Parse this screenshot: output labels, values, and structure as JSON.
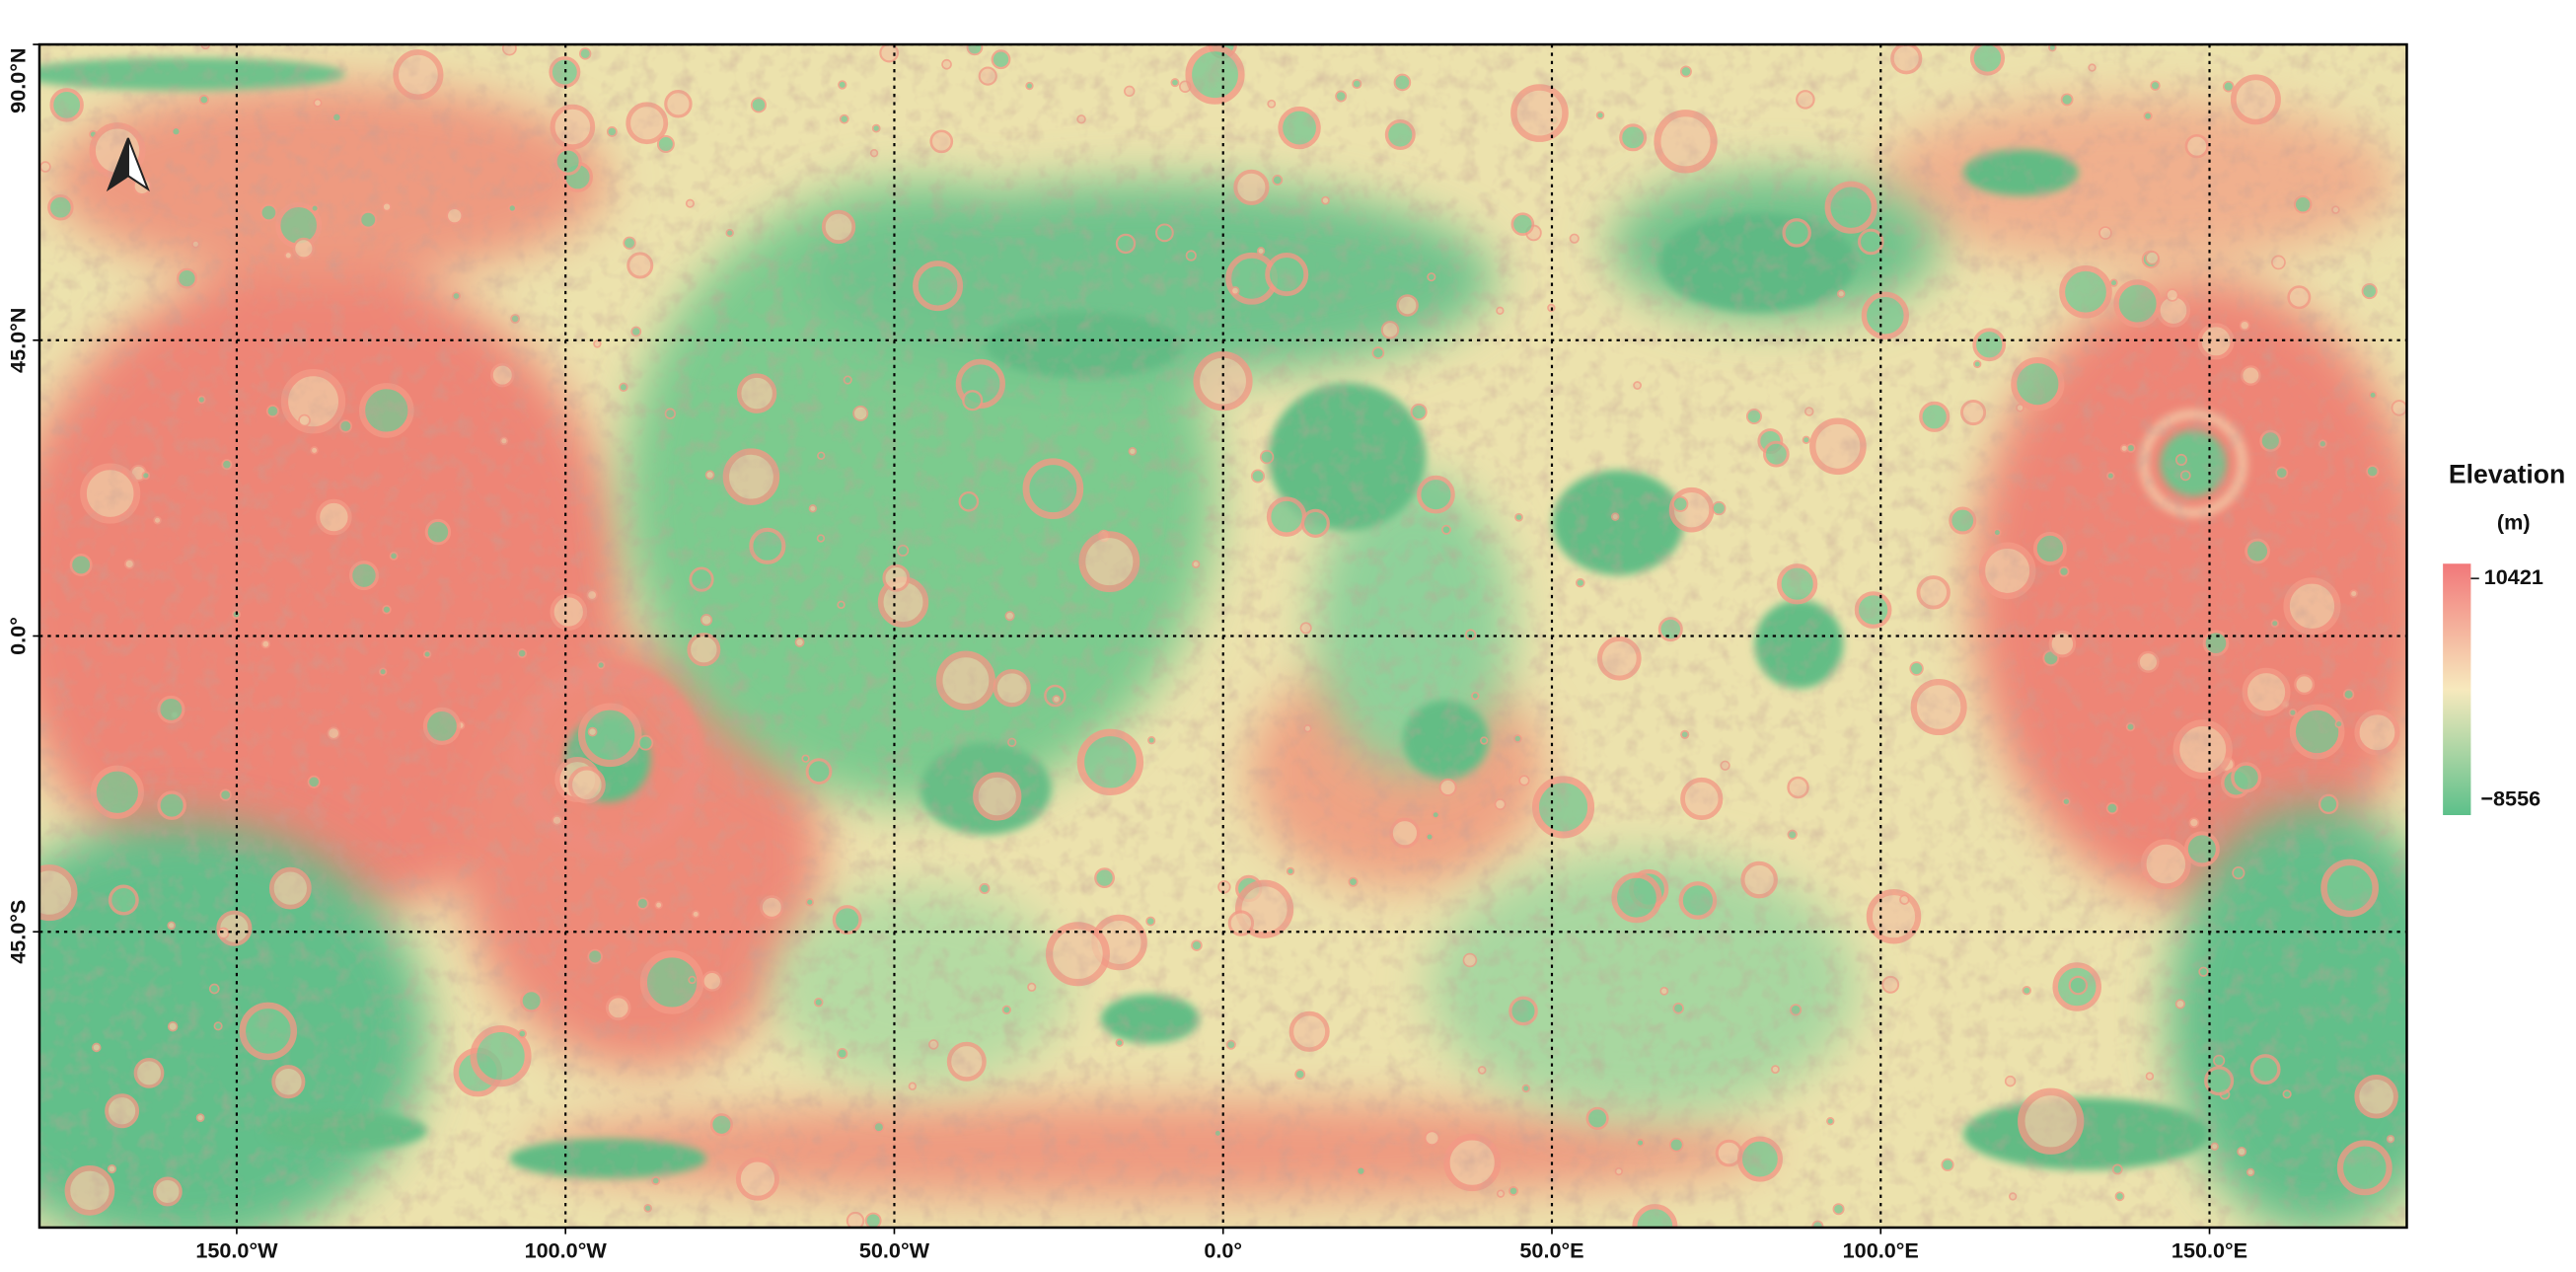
{
  "map": {
    "xlim": [
      -180,
      180
    ],
    "ylim": [
      -90,
      90
    ],
    "xticks": [
      {
        "value": -150,
        "label": "150.0°W"
      },
      {
        "value": -100,
        "label": "100.0°W"
      },
      {
        "value": -50,
        "label": "50.0°W"
      },
      {
        "value": 0,
        "label": "0.0°"
      },
      {
        "value": 50,
        "label": "50.0°E"
      },
      {
        "value": 100,
        "label": "100.0°E"
      },
      {
        "value": 150,
        "label": "150.0°E"
      }
    ],
    "yticks": [
      {
        "value": 90,
        "label": "90.0°N"
      },
      {
        "value": 45,
        "label": "45.0°N"
      },
      {
        "value": 0,
        "label": "0.0°"
      },
      {
        "value": -45,
        "label": "45.0°S"
      }
    ],
    "grid": true
  },
  "legend": {
    "title": "Elevation",
    "unit": "(m)",
    "max": 10421,
    "min": {
      "value": -8556,
      "label": "−8556"
    },
    "colors": [
      "#f2787a",
      "#f7e9bd",
      "#5cc08a"
    ]
  }
}
